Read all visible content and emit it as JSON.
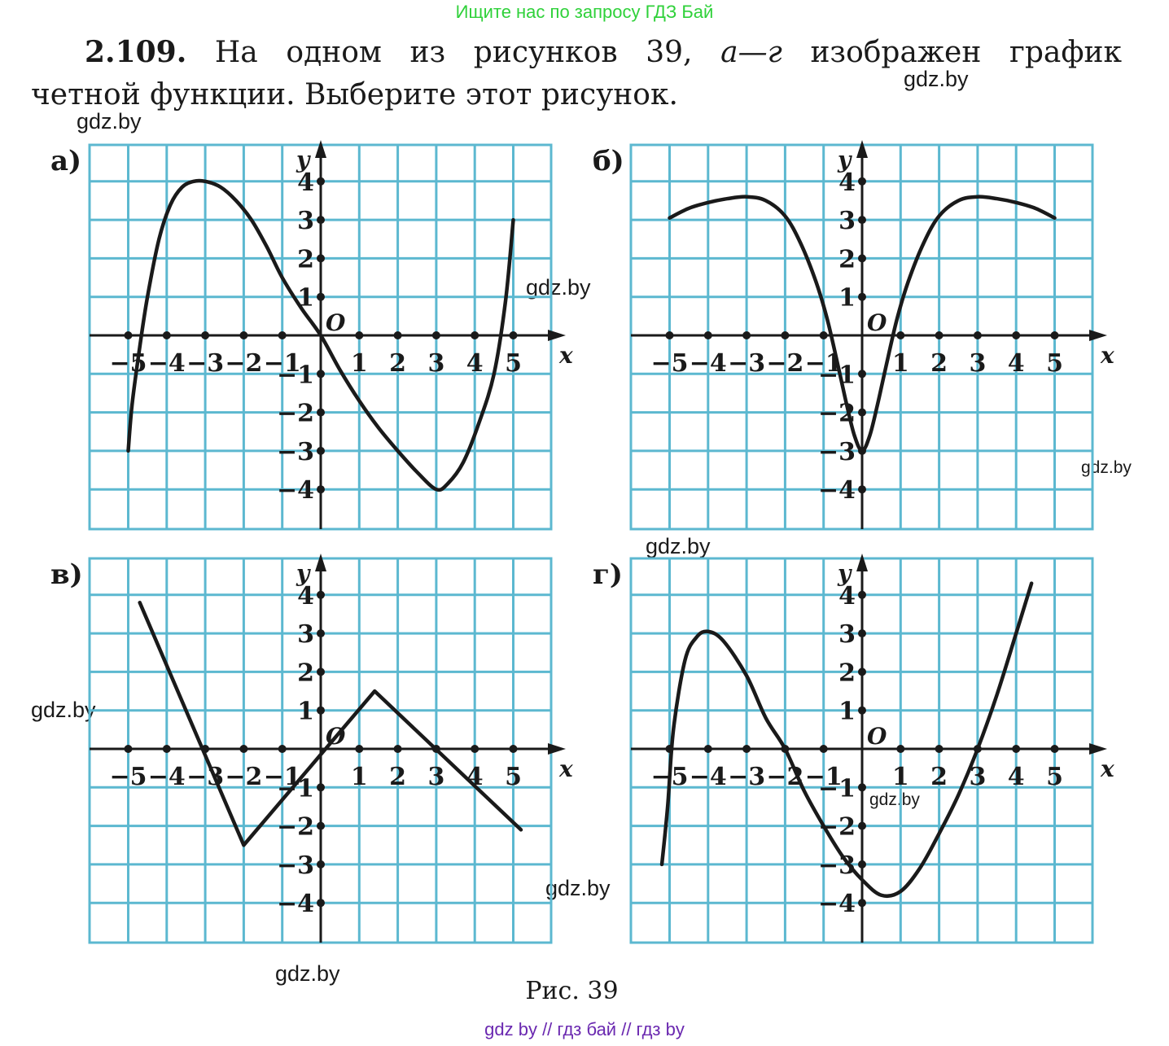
{
  "header_link": "Ищите нас по запросу ГДЗ Бай",
  "problem": {
    "number": "2.109.",
    "line1_part1": "На одном из рисунков 39,",
    "line1_range": "а—г",
    "line1_part2": "изображен график",
    "line2": "четной функции. Выберите этот рисунок."
  },
  "watermark": "gdz.by",
  "caption": "Рис. 39",
  "footer": "gdz by  //  гдз бай  //  гдз by",
  "colors": {
    "grid": "#5cb8d0",
    "curve": "#1a1a1a",
    "header_link": "#2fd13a",
    "footer": "#6a28b0"
  },
  "panels": [
    {
      "label": "а)",
      "x_ticks": [
        "−5",
        "−4",
        "−3",
        "−2",
        "−1",
        "1",
        "2",
        "3",
        "4",
        "5"
      ],
      "y_ticks": [
        "4",
        "3",
        "2",
        "1",
        "−1",
        "−2",
        "−3",
        "−4"
      ],
      "origin": "O",
      "x_axis": "x",
      "y_axis": "y",
      "curve": [
        [
          -5,
          -3
        ],
        [
          -4.9,
          -1.8
        ],
        [
          -4.7,
          -0.3
        ],
        [
          -4.5,
          1
        ],
        [
          -4.2,
          2.5
        ],
        [
          -3.9,
          3.4
        ],
        [
          -3.6,
          3.85
        ],
        [
          -3.3,
          4
        ],
        [
          -3,
          4
        ],
        [
          -2.6,
          3.85
        ],
        [
          -2.2,
          3.5
        ],
        [
          -1.8,
          3
        ],
        [
          -1.4,
          2.3
        ],
        [
          -1,
          1.5
        ],
        [
          -0.5,
          0.7
        ],
        [
          0,
          0
        ],
        [
          0.5,
          -0.9
        ],
        [
          1,
          -1.7
        ],
        [
          1.5,
          -2.4
        ],
        [
          2,
          -3
        ],
        [
          2.5,
          -3.55
        ],
        [
          3,
          -4
        ],
        [
          3.3,
          -3.85
        ],
        [
          3.7,
          -3.3
        ],
        [
          4.1,
          -2.3
        ],
        [
          4.5,
          -1
        ],
        [
          4.8,
          0.9
        ],
        [
          5,
          3
        ]
      ]
    },
    {
      "label": "б)",
      "x_ticks": [
        "−5",
        "−4",
        "−3",
        "−2",
        "−1",
        "1",
        "2",
        "3",
        "4",
        "5"
      ],
      "y_ticks": [
        "4",
        "3",
        "2",
        "1",
        "−1",
        "−2",
        "−3",
        "−4"
      ],
      "origin": "O",
      "x_axis": "x",
      "y_axis": "y",
      "curve": [
        [
          -5,
          3.05
        ],
        [
          -4.5,
          3.3
        ],
        [
          -4,
          3.45
        ],
        [
          -3.5,
          3.55
        ],
        [
          -3,
          3.6
        ],
        [
          -2.5,
          3.5
        ],
        [
          -2,
          3.1
        ],
        [
          -1.6,
          2.4
        ],
        [
          -1.2,
          1.4
        ],
        [
          -0.9,
          0.4
        ],
        [
          -0.6,
          -0.9
        ],
        [
          -0.4,
          -1.8
        ],
        [
          -0.2,
          -2.6
        ],
        [
          0,
          -3
        ],
        [
          0.2,
          -2.6
        ],
        [
          0.4,
          -1.8
        ],
        [
          0.6,
          -0.9
        ],
        [
          0.9,
          0.4
        ],
        [
          1.2,
          1.4
        ],
        [
          1.6,
          2.4
        ],
        [
          2,
          3.1
        ],
        [
          2.5,
          3.5
        ],
        [
          3,
          3.6
        ],
        [
          3.5,
          3.55
        ],
        [
          4,
          3.45
        ],
        [
          4.5,
          3.3
        ],
        [
          5,
          3.05
        ]
      ]
    },
    {
      "label": "в)",
      "x_ticks": [
        "−5",
        "−4",
        "−3",
        "−2",
        "−1",
        "1",
        "2",
        "3",
        "4",
        "5"
      ],
      "y_ticks": [
        "4",
        "3",
        "2",
        "1",
        "−1",
        "−2",
        "−3",
        "−4"
      ],
      "origin": "O",
      "x_axis": "x",
      "y_axis": "y",
      "curve": [
        [
          -4.7,
          3.8
        ],
        [
          -2,
          -2.5
        ],
        [
          1.4,
          1.5
        ],
        [
          5.2,
          -2.1
        ]
      ]
    },
    {
      "label": "г)",
      "x_ticks": [
        "−5",
        "−4",
        "−3",
        "−2",
        "−1",
        "1",
        "2",
        "3",
        "4",
        "5"
      ],
      "y_ticks": [
        "4",
        "3",
        "2",
        "1",
        "−1",
        "−2",
        "−3",
        "−4"
      ],
      "origin": "O",
      "x_axis": "x",
      "y_axis": "y",
      "curve": [
        [
          -5.2,
          -3
        ],
        [
          -5.05,
          -1.5
        ],
        [
          -4.9,
          0.5
        ],
        [
          -4.6,
          2.3
        ],
        [
          -4.3,
          2.9
        ],
        [
          -4,
          3.05
        ],
        [
          -3.6,
          2.8
        ],
        [
          -3,
          1.9
        ],
        [
          -2.5,
          0.8
        ],
        [
          -2,
          0
        ],
        [
          -1.5,
          -1.1
        ],
        [
          -1,
          -2
        ],
        [
          -0.5,
          -2.8
        ],
        [
          0,
          -3.4
        ],
        [
          0.5,
          -3.8
        ],
        [
          1,
          -3.7
        ],
        [
          1.5,
          -3.1
        ],
        [
          2,
          -2.2
        ],
        [
          2.5,
          -1.2
        ],
        [
          3,
          0
        ],
        [
          3.5,
          1.4
        ],
        [
          4,
          3
        ],
        [
          4.4,
          4.3
        ]
      ]
    }
  ]
}
